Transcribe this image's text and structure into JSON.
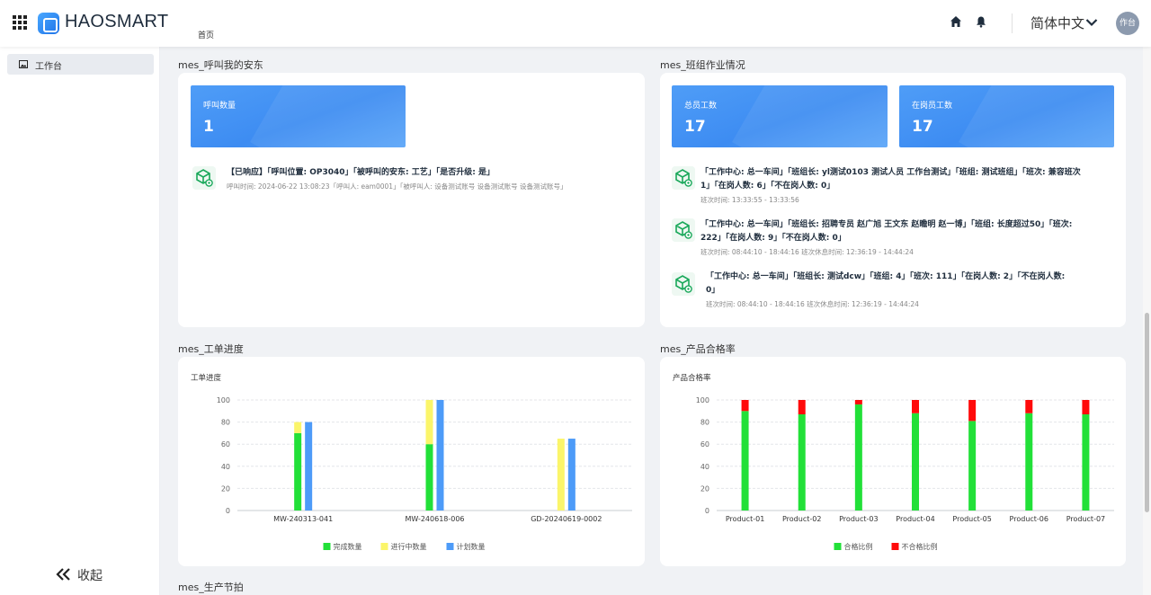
{
  "header": {
    "logo_text": "HAOSMART",
    "breadcrumb": "首页",
    "language": "简体中文",
    "avatar_text": "作台"
  },
  "sidebar": {
    "items": [
      {
        "label": "工作台",
        "icon": "image-icon"
      }
    ],
    "collapse_label": "收起"
  },
  "andon": {
    "title": "mes_呼叫我的安东",
    "stat": {
      "label": "呼叫数量",
      "value": "1"
    },
    "entries": [
      {
        "main": "【已响应】「呼叫位置: OP3040」「被呼叫的安东: 工艺」「是否升级: 是」",
        "sub": "呼叫时间: 2024-06-22 13:08:23「呼叫人: eam0001」「被呼叫人: 设备测试账号 设备测试账号 设备测试账号」"
      }
    ]
  },
  "team": {
    "title": "mes_班组作业情况",
    "stats": [
      {
        "label": "总员工数",
        "value": "17"
      },
      {
        "label": "在岗员工数",
        "value": "17"
      }
    ],
    "entries": [
      {
        "line1": "「工作中心: 总一车间」「班组长: yl测试0103 测试人员 工作台测试」「班组: 测试班组」「班次: 兼容班次",
        "line2": "1」「在岗人数: 6」「不在岗人数: 0」",
        "sub": "班次时间: 13:33:55 - 13:33:56"
      },
      {
        "line1": "「工作中心: 总一车间」「班组长: 招聘专员 赵广旭 王文东 赵瞻明 赵一博」「班组: 长度超过50」「班次:",
        "line2": "222」「在岗人数: 9」「不在岗人数: 0」",
        "sub": "班次时间: 08:44:10 - 18:44:16 班次休息时间: 12:36:19 - 14:44:24"
      },
      {
        "line1": "「工作中心: 总一车间」「班组长: 测试dcw」「班组: 4」「班次: 111」「在岗人数: 2」「不在岗人数:",
        "line2": "0」",
        "sub": "班次时间: 08:44:10 - 18:44:16 班次休息时间: 12:36:19 - 14:44:24"
      }
    ]
  },
  "workorder": {
    "section_title": "mes_工单进度",
    "chart_title": "工单进度"
  },
  "quality": {
    "section_title": "mes_产品合格率",
    "chart_title": "产品合格率"
  },
  "takt": {
    "section_title": "mes_生产节拍"
  },
  "chart_data": [
    {
      "type": "bar",
      "title": "工单进度",
      "categories": [
        "MW-240313-041",
        "MW-240618-006",
        "GD-20240619-0002"
      ],
      "ylim": [
        0,
        100
      ],
      "yticks": [
        0,
        20,
        40,
        60,
        80,
        100
      ],
      "grid": true,
      "legend_position": "bottom",
      "stacked_first_two": true,
      "series": [
        {
          "name": "完成数量",
          "color": "#22e038",
          "values": [
            70,
            60,
            0
          ]
        },
        {
          "name": "进行中数量",
          "color": "#fbf56a",
          "values": [
            10,
            40,
            65
          ]
        },
        {
          "name": "计划数量",
          "color": "#4d9bf8",
          "values": [
            80,
            100,
            65
          ]
        }
      ]
    },
    {
      "type": "bar",
      "title": "产品合格率",
      "categories": [
        "Product-01",
        "Product-02",
        "Product-03",
        "Product-04",
        "Product-05",
        "Product-06",
        "Product-07"
      ],
      "ylim": [
        0,
        100
      ],
      "yticks": [
        0,
        20,
        40,
        60,
        80,
        100
      ],
      "grid": true,
      "legend_position": "bottom",
      "stacked": true,
      "series": [
        {
          "name": "合格比例",
          "color": "#22e038",
          "values": [
            90,
            87,
            96,
            88,
            81,
            88,
            87
          ]
        },
        {
          "name": "不合格比例",
          "color": "#ff0a0a",
          "values": [
            10,
            13,
            4,
            12,
            19,
            12,
            13
          ]
        }
      ]
    }
  ]
}
